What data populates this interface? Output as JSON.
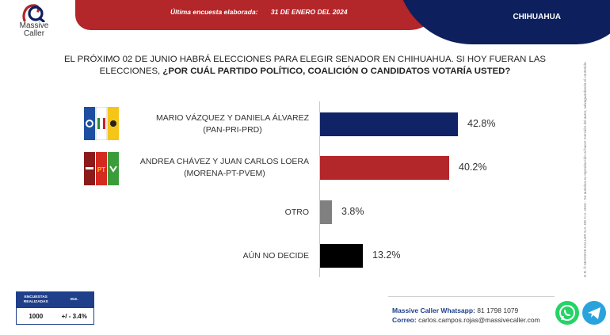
{
  "header": {
    "brand_line1": "Massive",
    "brand_line2": "Caller",
    "survey_label": "Última encuesta elaborada:",
    "survey_date": "31 DE ENERO DEL 2024",
    "state": "CHIHUAHUA"
  },
  "question": {
    "line1": "EL PRÓXIMO 02 DE JUNIO HABRÁ ELECCIONES PARA ELEGIR SENADOR EN CHIHUAHUA. SI HOY FUERAN LAS",
    "line2_plain": "ELECCIONES, ",
    "line2_bold": "¿POR CUÁL PARTIDO POLÍTICO, COALICIÓN O CANDIDATOS VOTARÍA USTED?"
  },
  "chart_data": {
    "type": "bar",
    "orientation": "horizontal",
    "title": "",
    "xlabel": "",
    "ylabel": "",
    "xlim": [
      0,
      50
    ],
    "grid": false,
    "categories": [
      "MARIO VÁZQUEZ Y DANIELA ÁLVAREZ (PAN-PRI-PRD)",
      "ANDREA CHÁVEZ Y JUAN CARLOS LOERA (MORENA-PT-PVEM)",
      "OTRO",
      "AÚN NO DECIDE"
    ],
    "values": [
      42.8,
      40.2,
      3.8,
      13.2
    ],
    "value_labels": [
      "42.8%",
      "40.2%",
      "3.8%",
      "13.2%"
    ],
    "label_lines": [
      [
        "MARIO VÁZQUEZ Y DANIELA ÁLVAREZ",
        "(PAN-PRI-PRD)"
      ],
      [
        "ANDREA CHÁVEZ Y JUAN CARLOS LOERA",
        "(MORENA-PT-PVEM)"
      ],
      [
        "OTRO"
      ],
      [
        "AÚN NO DECIDE"
      ]
    ],
    "colors": [
      "#102366",
      "#b3262a",
      "#808080",
      "#000000"
    ]
  },
  "party_logos": {
    "coalition1": {
      "icons": [
        "pan-logo-icon",
        "pri-logo-icon",
        "prd-logo-icon"
      ],
      "colors": [
        "#1d4fa0",
        "#ffffff",
        "#f5c518"
      ],
      "texts": [
        "PAN",
        "PRI",
        ""
      ]
    },
    "coalition2": {
      "icons": [
        "morena-logo-icon",
        "pt-logo-icon",
        "pvem-logo-icon"
      ],
      "colors": [
        "#8b1a1a",
        "#d42a20",
        "#3a9d3a"
      ],
      "texts": [
        "morena",
        "PT",
        "VERDE"
      ]
    }
  },
  "sample": {
    "col1_header": "ENCUESTAS REALIZADAS",
    "col2_header": "M.E.",
    "col1_value": "1000",
    "col2_value": "+/ - 3.4%"
  },
  "contact": {
    "whatsapp_label": "Massive Caller Whatsapp:",
    "whatsapp_number": "81 1798 1079",
    "email_label": "Correo:",
    "email": "carlos.campos.rojas@massivecaller.com"
  },
  "copyright_text": "D.R. © MASSIVE CALLER S.A. DE C.V. 2024 · Se autoriza su reproducción al hacer mención del autor, salvaguardando el contenido.",
  "icons": [
    "whatsapp-icon",
    "telegram-icon"
  ],
  "colors": {
    "red": "#b3262a",
    "navy": "#0d1f5c",
    "blue": "#1f3f8a",
    "whatsapp": "#25d366",
    "telegram": "#2aa3dc"
  }
}
